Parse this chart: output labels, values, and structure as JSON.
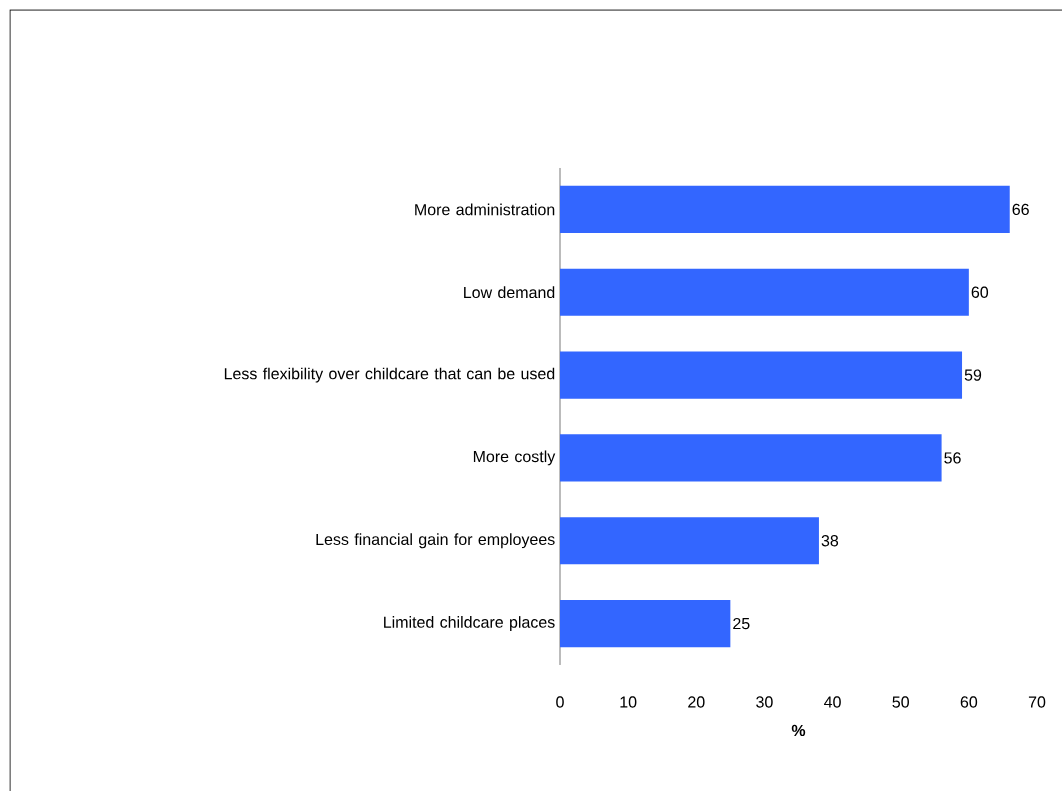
{
  "chart_data": {
    "type": "bar",
    "orientation": "horizontal",
    "xlabel": "%",
    "categories": [
      "More administration",
      "Low demand",
      "Less flexibility over childcare that can be used",
      "More costly",
      "Less financial gain for employees",
      "Limited childcare places"
    ],
    "values": [
      66,
      60,
      59,
      56,
      38,
      25
    ],
    "color": "#3366ff",
    "data_labels": true,
    "xlim": [
      0,
      70
    ],
    "xticks": [
      0,
      10,
      20,
      30,
      40,
      50,
      60,
      70
    ],
    "grid": false,
    "legend": false
  }
}
